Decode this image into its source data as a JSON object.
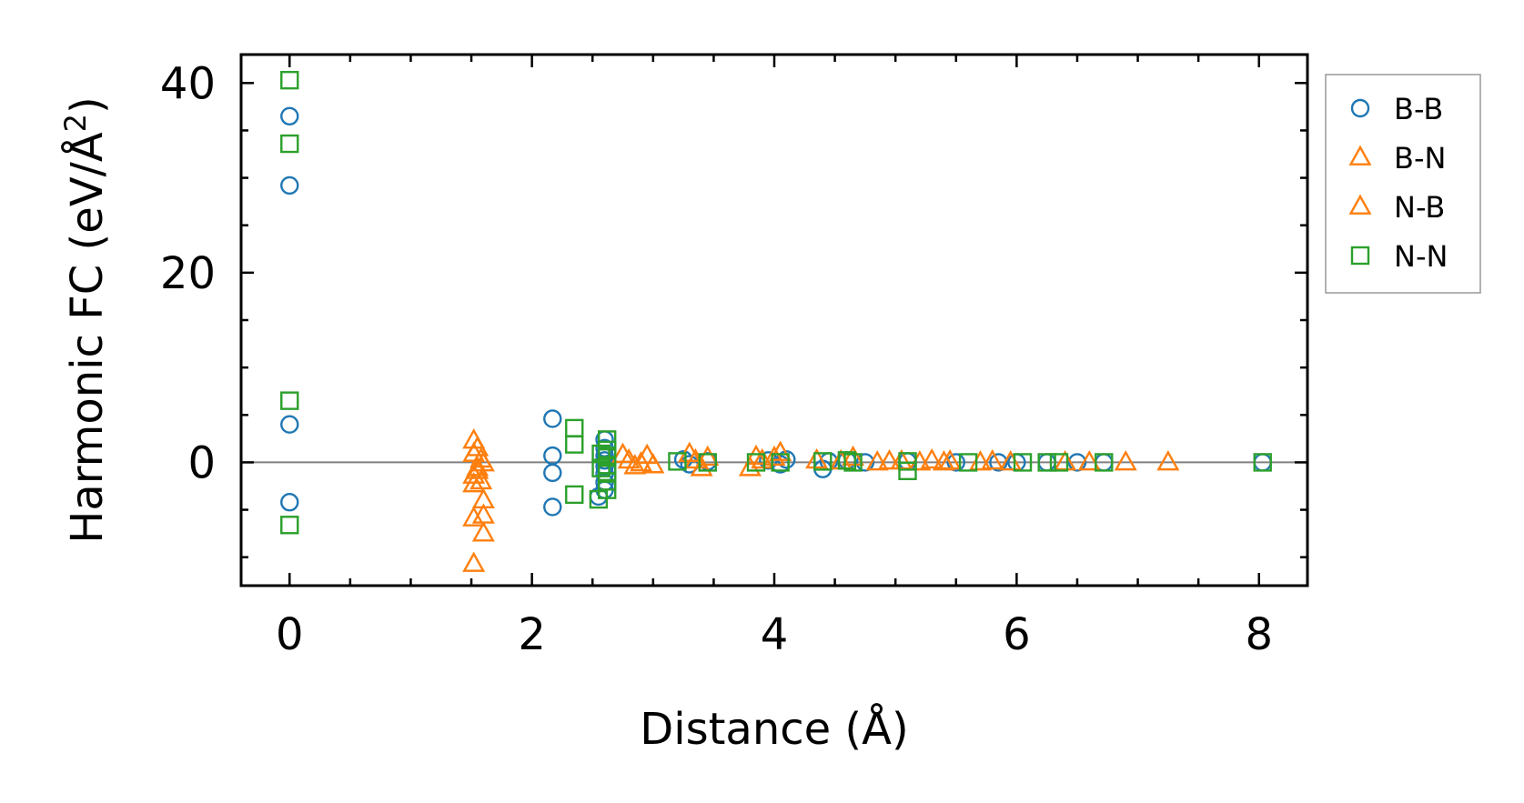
{
  "chart_data": {
    "type": "scatter",
    "title": "",
    "xlabel": "Distance (Å)",
    "ylabel_main": "Harmonic FC (eV/Å",
    "ylabel_sup": "2",
    "ylabel_close": ")",
    "xlim": [
      -0.4,
      8.4
    ],
    "ylim": [
      -13,
      43
    ],
    "xticks": [
      0,
      2,
      4,
      6,
      8
    ],
    "xtick_labels": [
      "0",
      "2",
      "4",
      "6",
      "8"
    ],
    "yticks": [
      0,
      20,
      40
    ],
    "ytick_labels": [
      "0",
      "20",
      "40"
    ],
    "x_minor_step": 0.5,
    "y_minor_step": 5,
    "zero_line": true,
    "legend_position": "outside-right-top",
    "series": [
      {
        "name": "B-B",
        "marker": "circle",
        "color": "#1f77b4",
        "points": [
          [
            0,
            36.5
          ],
          [
            0,
            29.2
          ],
          [
            0,
            4.0
          ],
          [
            0,
            -4.2
          ],
          [
            2.17,
            4.6
          ],
          [
            2.17,
            0.7
          ],
          [
            2.17,
            -1.1
          ],
          [
            2.17,
            -4.7
          ],
          [
            2.6,
            2.4
          ],
          [
            2.6,
            1.5
          ],
          [
            2.6,
            0.7
          ],
          [
            2.6,
            0.2
          ],
          [
            2.6,
            -0.4
          ],
          [
            2.6,
            -1.2
          ],
          [
            2.6,
            -2.1
          ],
          [
            2.6,
            -2.9
          ],
          [
            2.55,
            -3.6
          ],
          [
            3.25,
            0.3
          ],
          [
            3.3,
            -0.2
          ],
          [
            3.45,
            0.1
          ],
          [
            3.95,
            0.2
          ],
          [
            4.1,
            0.3
          ],
          [
            4.05,
            -0.2
          ],
          [
            4.4,
            -0.7
          ],
          [
            4.45,
            0.1
          ],
          [
            4.6,
            0.2
          ],
          [
            4.75,
            0.0
          ],
          [
            5.1,
            0.1
          ],
          [
            5.5,
            0.0
          ],
          [
            5.85,
            0.0
          ],
          [
            6.0,
            0.0
          ],
          [
            6.25,
            0.0
          ],
          [
            6.5,
            0.0
          ],
          [
            6.72,
            0.0
          ],
          [
            8.03,
            0.0
          ]
        ]
      },
      {
        "name": "B-N",
        "marker": "triangle",
        "color": "#ff7f0e",
        "points": [
          [
            1.52,
            2.3
          ],
          [
            1.52,
            0.9
          ],
          [
            1.55,
            -0.6
          ],
          [
            1.52,
            -1.4
          ],
          [
            1.52,
            -2.3
          ],
          [
            1.52,
            -5.9
          ],
          [
            1.52,
            -10.7
          ],
          [
            1.6,
            -0.1
          ],
          [
            1.6,
            -4.0
          ],
          [
            1.6,
            -5.6
          ],
          [
            1.6,
            -7.5
          ],
          [
            2.75,
            0.8
          ],
          [
            2.85,
            -0.4
          ],
          [
            2.95,
            0.7
          ],
          [
            3.0,
            -0.3
          ],
          [
            3.3,
            0.9
          ],
          [
            3.4,
            -0.6
          ],
          [
            3.45,
            0.5
          ],
          [
            3.8,
            -0.6
          ],
          [
            3.85,
            0.6
          ],
          [
            4.0,
            0.5
          ],
          [
            4.05,
            1.0
          ],
          [
            4.35,
            0.2
          ],
          [
            4.65,
            0.5
          ],
          [
            4.85,
            0.0
          ],
          [
            4.95,
            0.1
          ],
          [
            5.2,
            0.0
          ],
          [
            5.3,
            0.2
          ],
          [
            5.4,
            0.0
          ],
          [
            5.45,
            0.1
          ],
          [
            5.8,
            0.1
          ],
          [
            5.95,
            0.0
          ],
          [
            6.6,
            0.0
          ],
          [
            6.9,
            0.0
          ],
          [
            7.25,
            0.0
          ]
        ]
      },
      {
        "name": "N-B",
        "marker": "triangle",
        "color": "#ff7f0e",
        "points": [
          [
            1.55,
            1.5
          ],
          [
            1.58,
            0.3
          ],
          [
            1.55,
            -0.9
          ],
          [
            1.58,
            -2.0
          ],
          [
            2.8,
            0.2
          ],
          [
            2.9,
            -0.1
          ],
          [
            3.35,
            0.2
          ],
          [
            3.9,
            0.2
          ],
          [
            4.55,
            0.1
          ],
          [
            5.05,
            0.1
          ],
          [
            5.7,
            0.0
          ],
          [
            6.4,
            0.0
          ]
        ]
      },
      {
        "name": "N-N",
        "marker": "square",
        "color": "#2ca02c",
        "points": [
          [
            0,
            40.3
          ],
          [
            0,
            33.6
          ],
          [
            0,
            6.5
          ],
          [
            0,
            -6.6
          ],
          [
            2.35,
            3.6
          ],
          [
            2.35,
            1.9
          ],
          [
            2.35,
            -3.4
          ],
          [
            2.55,
            -3.9
          ],
          [
            2.62,
            2.4
          ],
          [
            2.62,
            1.3
          ],
          [
            2.62,
            0.5
          ],
          [
            2.62,
            -0.3
          ],
          [
            2.62,
            -1.0
          ],
          [
            2.62,
            -2.0
          ],
          [
            2.62,
            -2.9
          ],
          [
            2.57,
            0.9
          ],
          [
            2.57,
            -0.6
          ],
          [
            3.2,
            0.1
          ],
          [
            3.45,
            0.0
          ],
          [
            3.85,
            0.0
          ],
          [
            4.05,
            0.0
          ],
          [
            4.4,
            0.1
          ],
          [
            4.6,
            0.2
          ],
          [
            4.65,
            0.0
          ],
          [
            5.1,
            0.1
          ],
          [
            5.1,
            -0.9
          ],
          [
            5.6,
            0.0
          ],
          [
            6.05,
            0.0
          ],
          [
            6.25,
            0.0
          ],
          [
            6.35,
            0.0
          ],
          [
            6.72,
            0.0
          ],
          [
            8.03,
            0.0
          ]
        ]
      }
    ]
  }
}
